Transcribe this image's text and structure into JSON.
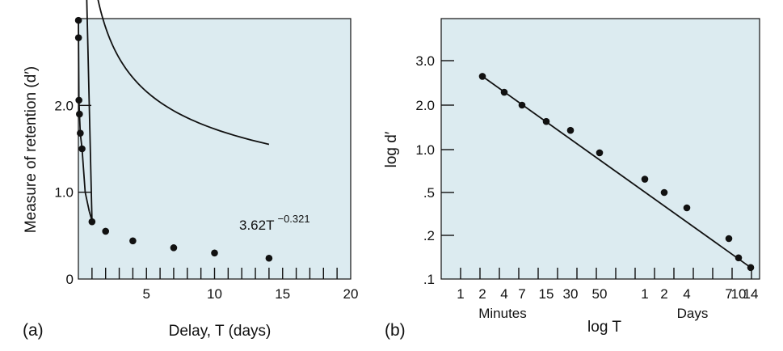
{
  "colors": {
    "panel_background": "#dcebf0",
    "ink": "#111111"
  },
  "chart_data": [
    {
      "type": "scatter",
      "panel_label": "(a)",
      "xlabel": "Delay, T (days)",
      "ylabel": "Measure of retention (d′)",
      "xlim": [
        0,
        20
      ],
      "ylim": [
        0,
        3.0
      ],
      "x_tick_labels": [
        "5",
        "10",
        "15",
        "20"
      ],
      "x_tick_values": [
        5,
        10,
        15,
        20
      ],
      "y_tick_labels": [
        "0",
        "1.0",
        "2.0"
      ],
      "y_tick_values": [
        0,
        1.0,
        2.0
      ],
      "fit_label": "3.62T",
      "fit_exponent": "−0.321",
      "fit": {
        "a": 3.62,
        "b": -0.321
      },
      "series": [
        {
          "x": [
            0.005,
            0.01,
            0.04,
            0.08,
            0.14,
            0.27,
            1.0,
            2.0,
            4.0,
            7.0,
            10.0,
            14.0
          ],
          "y": [
            2.98,
            2.78,
            2.06,
            1.9,
            1.68,
            1.5,
            0.66,
            0.55,
            0.44,
            0.36,
            0.3,
            0.24
          ]
        }
      ]
    },
    {
      "type": "scatter",
      "panel_label": "(b)",
      "xlabel": "log T",
      "ylabel": "log d′",
      "x_tick_labels": [
        "1",
        "2",
        "4",
        "7",
        "15",
        "30",
        "50",
        "1",
        "2",
        "4",
        "7",
        "10",
        "14"
      ],
      "x_group_labels": [
        "Minutes",
        "Days"
      ],
      "y_tick_labels": [
        "3.0",
        "2.0",
        "1.0",
        ".5",
        ".2",
        ".1"
      ],
      "y_tick_values": [
        3.0,
        2.0,
        1.0,
        0.5,
        0.2,
        0.1
      ],
      "series": [
        {
          "x_labels": [
            "2 min",
            "4 min",
            "7 min",
            "15 min",
            "30 min",
            "50 min",
            "1 day",
            "2 days",
            "4 days",
            "7 days",
            "10 days",
            "14 days"
          ],
          "y": [
            2.6,
            2.25,
            2.0,
            1.55,
            1.35,
            0.95,
            0.62,
            0.5,
            0.36,
            0.19,
            0.14,
            0.12
          ]
        }
      ],
      "fit_line": {
        "start": 2.6,
        "end": 0.12
      }
    }
  ]
}
